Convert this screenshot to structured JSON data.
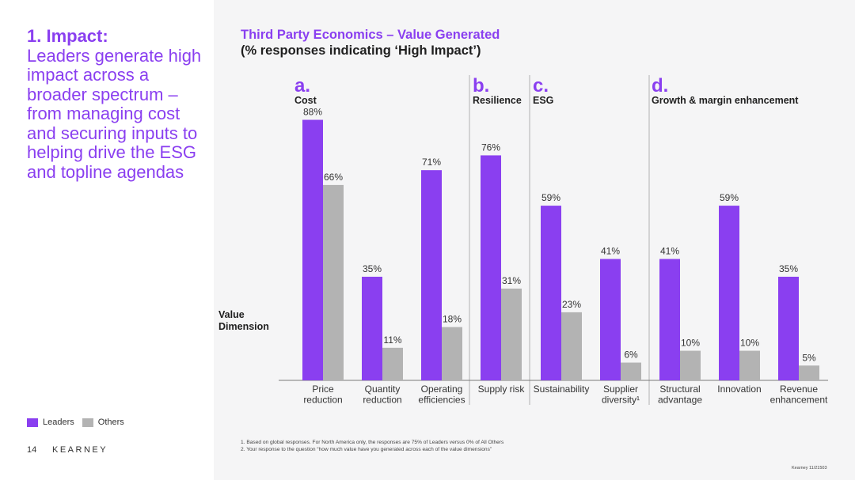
{
  "headline": {
    "bold": "1. Impact:",
    "body": "Leaders generate high impact across a broader spectrum – from managing cost and securing inputs to helping drive the ESG and topline agendas"
  },
  "legend": {
    "leaders": "Leaders",
    "others": "Others"
  },
  "footer": {
    "page_number": "14",
    "brand": "KEARNEY",
    "ref": "Kearney 11/21503"
  },
  "footnotes": [
    "1. Based on global responses. For North America only, the responses are 75% of Leaders versus 0% of All Others",
    "2. Your response to the question “how much value have you generated across each of the value dimensions”"
  ],
  "chart_data": {
    "type": "bar",
    "title": "Third Party Economics – Value Generated",
    "subtitle": "(% responses indicating ‘High Impact’)",
    "ylabel": "Value Dimension",
    "ylim": [
      0,
      100
    ],
    "unit": "%",
    "groups": [
      {
        "letter": "a.",
        "name": "Cost",
        "categories": [
          "Price reduction",
          "Quantity reduction",
          "Operating efficiencies"
        ]
      },
      {
        "letter": "b.",
        "name": "Resilience",
        "categories": [
          "Supply risk"
        ]
      },
      {
        "letter": "c.",
        "name": "ESG",
        "categories": [
          "Sustainability",
          "Supplier diversity"
        ]
      },
      {
        "letter": "d.",
        "name": "Growth & margin enhancement",
        "categories": [
          "Structural advantage",
          "Innovation",
          "Revenue enhancement"
        ]
      }
    ],
    "categories": [
      "Price reduction",
      "Quantity reduction",
      "Operating efficiencies",
      "Supply risk",
      "Sustainability",
      "Supplier diversity",
      "Structural advantage",
      "Innovation",
      "Revenue enhancement"
    ],
    "category_labels": [
      [
        "Price",
        "reduction"
      ],
      [
        "Quantity",
        "reduction"
      ],
      [
        "Operating",
        "efficiencies"
      ],
      [
        "Supply risk"
      ],
      [
        "Sustainability"
      ],
      [
        "Supplier",
        "diversity¹"
      ],
      [
        "Structural",
        "advantage"
      ],
      [
        "Innovation"
      ],
      [
        "Revenue",
        "enhancement"
      ]
    ],
    "series": [
      {
        "name": "Leaders",
        "color": "#8a3ff0",
        "values": [
          88,
          35,
          71,
          76,
          59,
          41,
          41,
          59,
          35
        ]
      },
      {
        "name": "Others",
        "color": "#b3b3b3",
        "values": [
          66,
          11,
          18,
          31,
          23,
          6,
          10,
          10,
          5
        ]
      }
    ]
  }
}
